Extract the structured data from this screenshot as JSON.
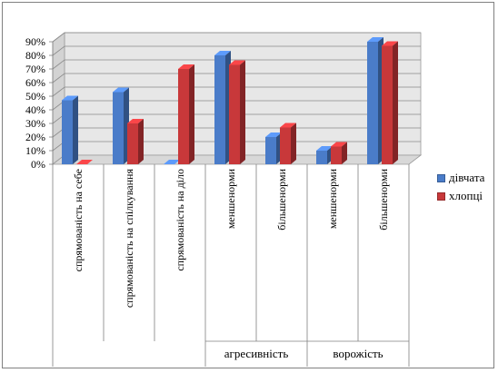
{
  "chart_data": {
    "type": "bar",
    "title": "",
    "xlabel": "",
    "ylabel": "",
    "ylim": [
      0,
      90
    ],
    "yticks": [
      "0%",
      "10%",
      "20%",
      "30%",
      "40%",
      "50%",
      "60%",
      "70%",
      "80%",
      "90%"
    ],
    "categories": [
      "спрямованість на себе",
      "спрямованість на спілкування",
      "спрямованість на діло",
      "меншенорми",
      "більшенорми",
      "меншенорми",
      "більшенорми"
    ],
    "groups": [
      {
        "label": "агресивність"
      },
      {
        "label": "ворожість"
      }
    ],
    "series": [
      {
        "name": "дівчата",
        "color": "#4a7cc9",
        "values": [
          47,
          53,
          0,
          80,
          20,
          10,
          90
        ]
      },
      {
        "name": "хлопці",
        "color": "#c8383a",
        "values": [
          0,
          30,
          70,
          73,
          27,
          13,
          87
        ]
      }
    ],
    "grid": true,
    "legend": "right",
    "style": "3d-clustered-column"
  }
}
